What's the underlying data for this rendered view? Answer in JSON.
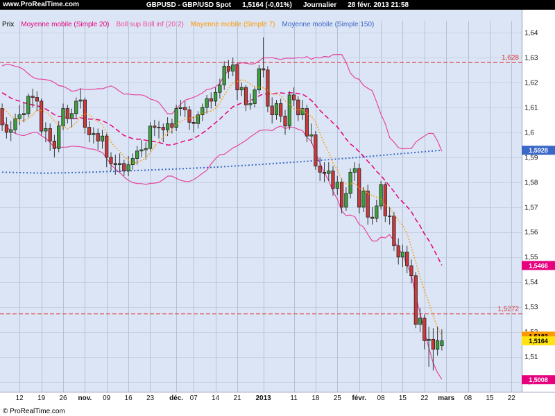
{
  "topbar": {
    "site": "www.ProRealTime.com",
    "instrument": "GBPUSD - GBP/USD Spot",
    "price": "1,5164 (-0,01%)",
    "timeframe": "Journalier",
    "datetime": "28 févr. 2013 21:58"
  },
  "legend": {
    "price_label": "Prix",
    "items": [
      {
        "label": "Moyenne mobile (Simple 20)",
        "color": "#e6007e"
      },
      {
        "label": "Boll sup Boll inf (20 2)",
        "color": "#f04aa0"
      },
      {
        "label": "Moyenne mobile (Simple 7)",
        "color": "#ff9900"
      },
      {
        "label": "Moyenne mobile (Simple 150)",
        "color": "#3a67c8"
      }
    ]
  },
  "footer": {
    "copyright": "© ProRealTime.com"
  },
  "colors": {
    "topbar_bg": "#000000",
    "topbar_fg": "#ffffff",
    "chart_bg": "#dbe5f5",
    "grid_h": "#c6d1e3",
    "grid_v": "#b4c1d6",
    "up_candle": "#3da03d",
    "down_candle": "#cc3939",
    "candle_border": "#222222",
    "wick": "#333333",
    "ma20": "#e6007e",
    "bollinger": "#e6459f",
    "ma7": "#ff9900",
    "ma150": "#3a67c8",
    "level": "#e03131"
  },
  "chart_data": {
    "type": "candlestick",
    "title": "GBPUSD - GBP/USD Spot",
    "timeframe": "Journalier",
    "last_price": 1.5164,
    "change_pct": -0.01,
    "ylim": [
      1.496,
      1.6447
    ],
    "total_slots": 120,
    "grid": true,
    "y_axis_ticks": [
      {
        "value": 1.64,
        "label": "1,64"
      },
      {
        "value": 1.63,
        "label": "1,63"
      },
      {
        "value": 1.62,
        "label": "1,62"
      },
      {
        "value": 1.61,
        "label": "1,61"
      },
      {
        "value": 1.6,
        "label": "1,6"
      },
      {
        "value": 1.59,
        "label": "1,59"
      },
      {
        "value": 1.58,
        "label": "1,58"
      },
      {
        "value": 1.57,
        "label": "1,57"
      },
      {
        "value": 1.56,
        "label": "1,56"
      },
      {
        "value": 1.55,
        "label": "1,55"
      },
      {
        "value": 1.54,
        "label": "1,54"
      },
      {
        "value": 1.53,
        "label": "1,53"
      },
      {
        "value": 1.52,
        "label": "1,52"
      },
      {
        "value": 1.51,
        "label": "1,51"
      },
      {
        "value": 1.5,
        "label": "1,5"
      }
    ],
    "x_ticks": [
      {
        "label": "12",
        "slot": 4
      },
      {
        "label": "19",
        "slot": 9
      },
      {
        "label": "26",
        "slot": 14
      },
      {
        "label": "nov.",
        "slot": 19,
        "bold": true
      },
      {
        "label": "09",
        "slot": 24
      },
      {
        "label": "16",
        "slot": 29
      },
      {
        "label": "23",
        "slot": 34
      },
      {
        "label": "déc.",
        "slot": 40,
        "bold": true
      },
      {
        "label": "07",
        "slot": 44
      },
      {
        "label": "14",
        "slot": 49
      },
      {
        "label": "21",
        "slot": 54
      },
      {
        "label": "2013",
        "slot": 60,
        "bold": true
      },
      {
        "label": "11",
        "slot": 67
      },
      {
        "label": "18",
        "slot": 72
      },
      {
        "label": "25",
        "slot": 77
      },
      {
        "label": "févr.",
        "slot": 82,
        "bold": true
      },
      {
        "label": "08",
        "slot": 87
      },
      {
        "label": "15",
        "slot": 92
      },
      {
        "label": "22",
        "slot": 97
      },
      {
        "label": "mars",
        "slot": 102,
        "bold": true
      },
      {
        "label": "08",
        "slot": 107
      },
      {
        "label": "15",
        "slot": 112
      },
      {
        "label": "22",
        "slot": 117
      }
    ],
    "levels": [
      {
        "label": "1,628",
        "value": 1.628
      },
      {
        "label": "1,5272",
        "value": 1.5272
      }
    ],
    "badges": [
      {
        "name": "ma150-value-badge",
        "label": "1,5928",
        "value": 1.5928,
        "bg": "#3a67c8",
        "fg": "#ffffff"
      },
      {
        "name": "ma20-value-badge",
        "label": "1,5466",
        "value": 1.5466,
        "bg": "#e6007e",
        "fg": "#ffffff"
      },
      {
        "name": "bollinger-inf-value-badge",
        "label": "1,5008",
        "value": 1.5008,
        "bg": "#e6007e",
        "fg": "#ffffff"
      },
      {
        "name": "ma7-value-badge",
        "label": "1,5183",
        "value": 1.5183,
        "bg": "#ff9900",
        "fg": "#000000"
      },
      {
        "name": "last-price-badge",
        "label": "1,5164",
        "value": 1.5164,
        "bg": "#ffe312",
        "fg": "#000000"
      }
    ],
    "indicators": {
      "ma20_period": 20,
      "bollinger_dev": 2,
      "ma7_period": 7,
      "ma150_period": 150
    },
    "warmup_closes": [
      1.621,
      1.623,
      1.6195,
      1.617,
      1.6205,
      1.624,
      1.622,
      1.618,
      1.6155,
      1.614,
      1.617,
      1.6195,
      1.616,
      1.612,
      1.6135,
      1.615,
      1.611,
      1.607,
      1.609
    ],
    "ma150_points": [
      [
        0,
        1.584
      ],
      [
        10,
        1.5836
      ],
      [
        20,
        1.584
      ],
      [
        30,
        1.5846
      ],
      [
        40,
        1.5853
      ],
      [
        50,
        1.5861
      ],
      [
        60,
        1.5872
      ],
      [
        70,
        1.5884
      ],
      [
        80,
        1.5897
      ],
      [
        90,
        1.5912
      ],
      [
        101,
        1.5928
      ]
    ],
    "candles": [
      [
        1.6095,
        1.6115,
        1.6005,
        1.603
      ],
      [
        1.603,
        1.606,
        1.5975,
        1.6
      ],
      [
        1.6,
        1.6045,
        1.5965,
        1.601
      ],
      [
        1.601,
        1.6075,
        1.5995,
        1.6055
      ],
      [
        1.6055,
        1.611,
        1.603,
        1.607
      ],
      [
        1.607,
        1.612,
        1.604,
        1.6075
      ],
      [
        1.6075,
        1.6155,
        1.606,
        1.6145
      ],
      [
        1.6145,
        1.6175,
        1.61,
        1.614
      ],
      [
        1.614,
        1.6165,
        1.6085,
        1.6125
      ],
      [
        1.6125,
        1.6135,
        1.599,
        1.6005
      ],
      [
        1.6005,
        1.604,
        1.596,
        1.6015
      ],
      [
        1.6015,
        1.6035,
        1.5925,
        1.5965
      ],
      [
        1.5965,
        1.599,
        1.59,
        1.5935
      ],
      [
        1.5935,
        1.6045,
        1.592,
        1.6025
      ],
      [
        1.6025,
        1.6115,
        1.601,
        1.6095
      ],
      [
        1.6095,
        1.611,
        1.6035,
        1.6055
      ],
      [
        1.6055,
        1.6095,
        1.602,
        1.6075
      ],
      [
        1.6075,
        1.614,
        1.6055,
        1.6125
      ],
      [
        1.6125,
        1.6175,
        1.6095,
        1.613
      ],
      [
        1.613,
        1.614,
        1.5995,
        1.602
      ],
      [
        1.602,
        1.6045,
        1.596,
        1.599
      ],
      [
        1.599,
        1.602,
        1.5955,
        1.5995
      ],
      [
        1.5995,
        1.6015,
        1.593,
        1.5965
      ],
      [
        1.5965,
        1.601,
        1.5935,
        1.5985
      ],
      [
        1.5985,
        1.5995,
        1.586,
        1.59
      ],
      [
        1.59,
        1.592,
        1.5845,
        1.5875
      ],
      [
        1.5875,
        1.591,
        1.583,
        1.587
      ],
      [
        1.587,
        1.5915,
        1.584,
        1.5875
      ],
      [
        1.5875,
        1.589,
        1.5825,
        1.5845
      ],
      [
        1.5845,
        1.5905,
        1.5825,
        1.587
      ],
      [
        1.587,
        1.5915,
        1.585,
        1.5895
      ],
      [
        1.5895,
        1.5945,
        1.587,
        1.5925
      ],
      [
        1.5925,
        1.597,
        1.59,
        1.593
      ],
      [
        1.593,
        1.596,
        1.589,
        1.5935
      ],
      [
        1.5935,
        1.604,
        1.5925,
        1.6025
      ],
      [
        1.6025,
        1.605,
        1.5985,
        1.602
      ],
      [
        1.602,
        1.6045,
        1.5975,
        1.602
      ],
      [
        1.602,
        1.6035,
        1.596,
        1.601
      ],
      [
        1.601,
        1.606,
        1.5985,
        1.6035
      ],
      [
        1.6035,
        1.6055,
        1.5995,
        1.602
      ],
      [
        1.602,
        1.611,
        1.6005,
        1.6095
      ],
      [
        1.6095,
        1.613,
        1.6065,
        1.61
      ],
      [
        1.61,
        1.6125,
        1.606,
        1.609
      ],
      [
        1.609,
        1.6105,
        1.601,
        1.604
      ],
      [
        1.604,
        1.6065,
        1.6,
        1.6035
      ],
      [
        1.6035,
        1.6085,
        1.6015,
        1.607
      ],
      [
        1.607,
        1.6115,
        1.6045,
        1.61
      ],
      [
        1.61,
        1.615,
        1.6075,
        1.6135
      ],
      [
        1.6135,
        1.616,
        1.6095,
        1.6125
      ],
      [
        1.6125,
        1.618,
        1.6105,
        1.616
      ],
      [
        1.616,
        1.6215,
        1.6135,
        1.619
      ],
      [
        1.619,
        1.6285,
        1.617,
        1.6265
      ],
      [
        1.6265,
        1.629,
        1.6215,
        1.6245
      ],
      [
        1.6245,
        1.63,
        1.6225,
        1.627
      ],
      [
        1.627,
        1.628,
        1.613,
        1.617
      ],
      [
        1.617,
        1.62,
        1.6145,
        1.618
      ],
      [
        1.618,
        1.619,
        1.6085,
        1.611
      ],
      [
        1.611,
        1.6155,
        1.609,
        1.6115
      ],
      [
        1.6115,
        1.6185,
        1.61,
        1.617
      ],
      [
        1.617,
        1.627,
        1.6155,
        1.6255
      ],
      [
        1.6255,
        1.638,
        1.622,
        1.625
      ],
      [
        1.625,
        1.6265,
        1.608,
        1.6105
      ],
      [
        1.6105,
        1.614,
        1.6035,
        1.607
      ],
      [
        1.607,
        1.613,
        1.605,
        1.6115
      ],
      [
        1.6115,
        1.6135,
        1.604,
        1.6065
      ],
      [
        1.6065,
        1.609,
        1.599,
        1.6025
      ],
      [
        1.6025,
        1.6165,
        1.601,
        1.615
      ],
      [
        1.615,
        1.618,
        1.6105,
        1.613
      ],
      [
        1.613,
        1.6145,
        1.6045,
        1.607
      ],
      [
        1.607,
        1.613,
        1.605,
        1.6095
      ],
      [
        1.6095,
        1.611,
        1.596,
        1.5985
      ],
      [
        1.5985,
        1.6035,
        1.5955,
        1.599
      ],
      [
        1.599,
        1.6005,
        1.585,
        1.5865
      ],
      [
        1.5865,
        1.59,
        1.5805,
        1.584
      ],
      [
        1.584,
        1.588,
        1.58,
        1.5835
      ],
      [
        1.5835,
        1.588,
        1.5805,
        1.5845
      ],
      [
        1.5845,
        1.5865,
        1.5745,
        1.5775
      ],
      [
        1.5775,
        1.5825,
        1.575,
        1.58
      ],
      [
        1.58,
        1.5815,
        1.5675,
        1.57
      ],
      [
        1.57,
        1.578,
        1.5685,
        1.5755
      ],
      [
        1.5755,
        1.5855,
        1.5735,
        1.584
      ],
      [
        1.584,
        1.588,
        1.5805,
        1.5855
      ],
      [
        1.5855,
        1.5875,
        1.5675,
        1.57
      ],
      [
        1.57,
        1.578,
        1.568,
        1.5765
      ],
      [
        1.5765,
        1.579,
        1.563,
        1.566
      ],
      [
        1.566,
        1.57,
        1.563,
        1.5655
      ],
      [
        1.5655,
        1.573,
        1.564,
        1.5705
      ],
      [
        1.5705,
        1.5805,
        1.569,
        1.579
      ],
      [
        1.579,
        1.58,
        1.564,
        1.5665
      ],
      [
        1.5665,
        1.57,
        1.563,
        1.5665
      ],
      [
        1.5665,
        1.568,
        1.5525,
        1.5545
      ],
      [
        1.5545,
        1.5575,
        1.547,
        1.55
      ],
      [
        1.55,
        1.555,
        1.546,
        1.552
      ],
      [
        1.552,
        1.5545,
        1.5435,
        1.5465
      ],
      [
        1.5465,
        1.549,
        1.5395,
        1.5425
      ],
      [
        1.5425,
        1.544,
        1.5215,
        1.523
      ],
      [
        1.523,
        1.5295,
        1.52,
        1.5255
      ],
      [
        1.5255,
        1.527,
        1.513,
        1.5165
      ],
      [
        1.5165,
        1.522,
        1.506,
        1.517
      ],
      [
        1.517,
        1.5215,
        1.5045,
        1.513
      ],
      [
        1.513,
        1.522,
        1.5105,
        1.5165
      ],
      [
        1.5145,
        1.521,
        1.5125,
        1.5164
      ]
    ]
  }
}
